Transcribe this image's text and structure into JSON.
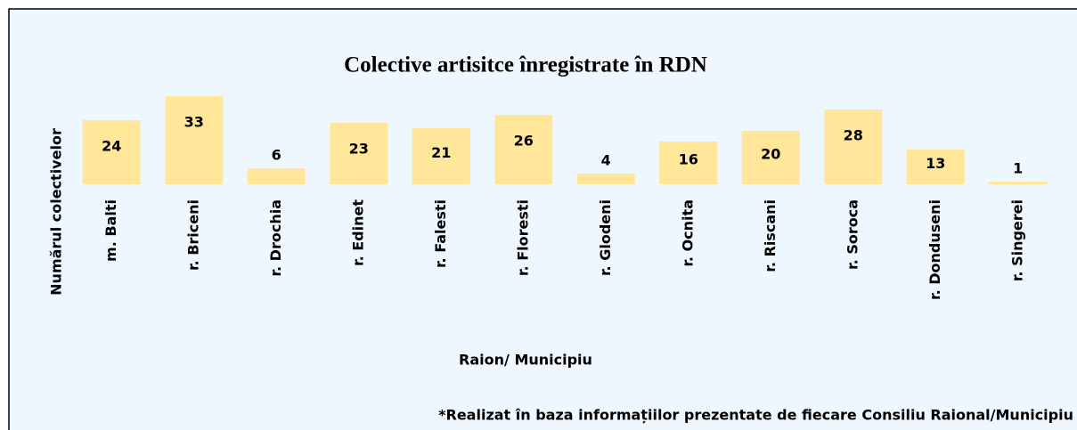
{
  "chart_data": {
    "type": "bar",
    "title": "Colective artisitce înregistrate în RDN",
    "x_label": "Raion/ Municipiu",
    "y_label": "Numărul colectivelor",
    "note": "*Realizat în baza informațiilor prezentate de fiecare Consiliu Raional/Municipiu",
    "categories": [
      "m. Balti",
      "r. Briceni",
      "r. Drochia",
      "r. Edinet",
      "r. Falesti",
      "r. Floresti",
      "r. Glodeni",
      "r. Ocnita",
      "r. Riscani",
      "r. Soroca",
      "r. Donduseni",
      "r. Singerei"
    ],
    "values": [
      24,
      33,
      6,
      23,
      21,
      26,
      4,
      16,
      20,
      28,
      13,
      1
    ],
    "color": "#ffe699"
  }
}
